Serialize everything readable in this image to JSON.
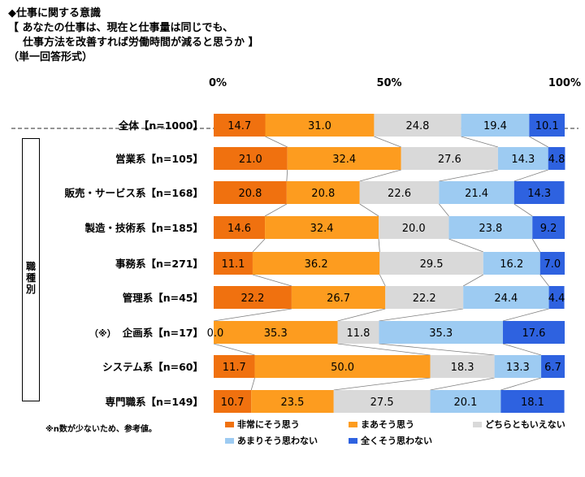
{
  "title": {
    "line1": "◆仕事に関する意識",
    "line2": "【 あなたの仕事は、現在と仕事量は同じでも、",
    "line3": "仕事方法を改善すれば労働時間が減ると思うか 】",
    "line4": "（単一回答形式）"
  },
  "group_label": "職種別",
  "note": "※n数が少ないため、参考値。",
  "colors": [
    "#f0710f",
    "#fd9c1f",
    "#d9d9d9",
    "#9dcbf2",
    "#2e62e0"
  ],
  "chart_data": {
    "type": "bar",
    "orientation": "horizontal",
    "stacked": true,
    "xlim": [
      0,
      100
    ],
    "x_ticks": [
      "0%",
      "50%",
      "100%"
    ],
    "categories": [
      "全体【n=1000】",
      "営業系【n=105】",
      "販売・サービス系【n=168】",
      "製造・技術系【n=185】",
      "事務系【n=271】",
      "管理系【n=45】",
      "企画系【n=17】",
      "システム系【n=60】",
      "専門職系【n=149】"
    ],
    "category_prefix": [
      "",
      "",
      "",
      "",
      "",
      "",
      "（※）",
      "",
      ""
    ],
    "series": [
      {
        "name": "非常にそう思う",
        "values": [
          14.7,
          21.0,
          20.8,
          14.6,
          11.1,
          22.2,
          0.0,
          11.7,
          10.7
        ],
        "labels": [
          "14.7",
          "21.0",
          "20.8",
          "14.6",
          "11.1",
          "22.2",
          "0.0",
          "11.7",
          "10.7"
        ]
      },
      {
        "name": "まあそう思う",
        "values": [
          31.0,
          32.4,
          20.8,
          32.4,
          36.2,
          26.7,
          35.3,
          50.0,
          23.5
        ],
        "labels": [
          "31.0",
          "32.4",
          "20.8",
          "32.4",
          "36.2",
          "26.7",
          "35.3",
          "50.0",
          "23.5"
        ]
      },
      {
        "name": "どちらともいえない",
        "values": [
          24.8,
          27.6,
          22.6,
          20.0,
          29.5,
          22.2,
          11.8,
          18.3,
          27.5
        ],
        "labels": [
          "24.8",
          "27.6",
          "22.6",
          "20.0",
          "29.5",
          "22.2",
          "11.8",
          "18.3",
          "27.5"
        ]
      },
      {
        "name": "あまりそう思わない",
        "values": [
          19.4,
          14.3,
          21.4,
          23.8,
          16.2,
          24.4,
          35.3,
          13.3,
          20.1
        ],
        "labels": [
          "19.4",
          "14.3",
          "21.4",
          "23.8",
          "16.2",
          "24.4",
          "35.3",
          "13.3",
          "20.1"
        ]
      },
      {
        "name": "全くそう思わない",
        "values": [
          10.1,
          4.8,
          14.3,
          9.2,
          7.0,
          4.4,
          17.6,
          6.7,
          18.1
        ],
        "labels": [
          "10.1",
          "4.8",
          "14.3",
          "9.2",
          "7.0",
          "4.4",
          "17.6",
          "6.7",
          "18.1"
        ]
      }
    ]
  }
}
